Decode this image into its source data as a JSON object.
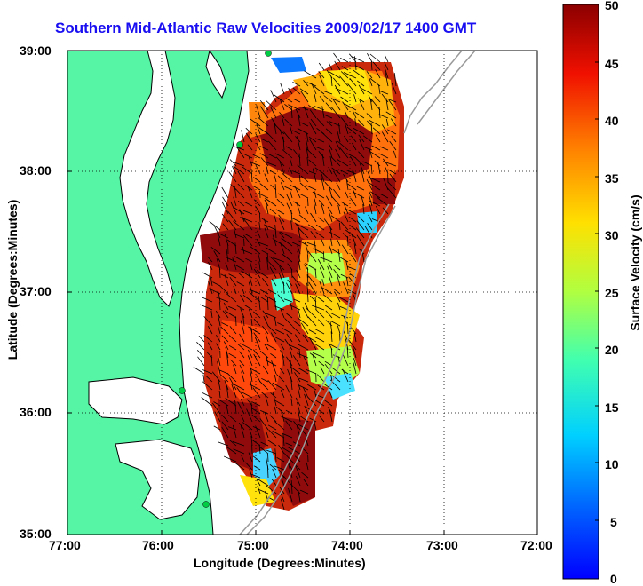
{
  "title": "Southern Mid-Atlantic Raw Velocities 2009/02/17 1400 GMT",
  "xlabel": "Longitude (Degrees:Minutes)",
  "ylabel": "Latitude (Degrees:Minutes)",
  "colorbar_label": "Surface Velocity (cm/s)",
  "x_ticks": [
    "77:00",
    "76:00",
    "75:00",
    "74:00",
    "73:00",
    "72:00"
  ],
  "y_ticks": [
    "39:00",
    "38:00",
    "37:00",
    "36:00",
    "35:00"
  ],
  "colorbar_ticks": [
    "50",
    "45",
    "40",
    "35",
    "30",
    "25",
    "20",
    "15",
    "10",
    "5",
    "0"
  ],
  "colors": {
    "land": "#55f5a5",
    "coast": "#000000",
    "grid": "#000000",
    "title": "#1a0ff0",
    "shelf": "#9a9a9a"
  },
  "map_extent": {
    "lon_min": -77,
    "lon_max": -72,
    "lat_min": 35,
    "lat_max": 39
  },
  "colorbar_range": [
    0,
    50
  ]
}
